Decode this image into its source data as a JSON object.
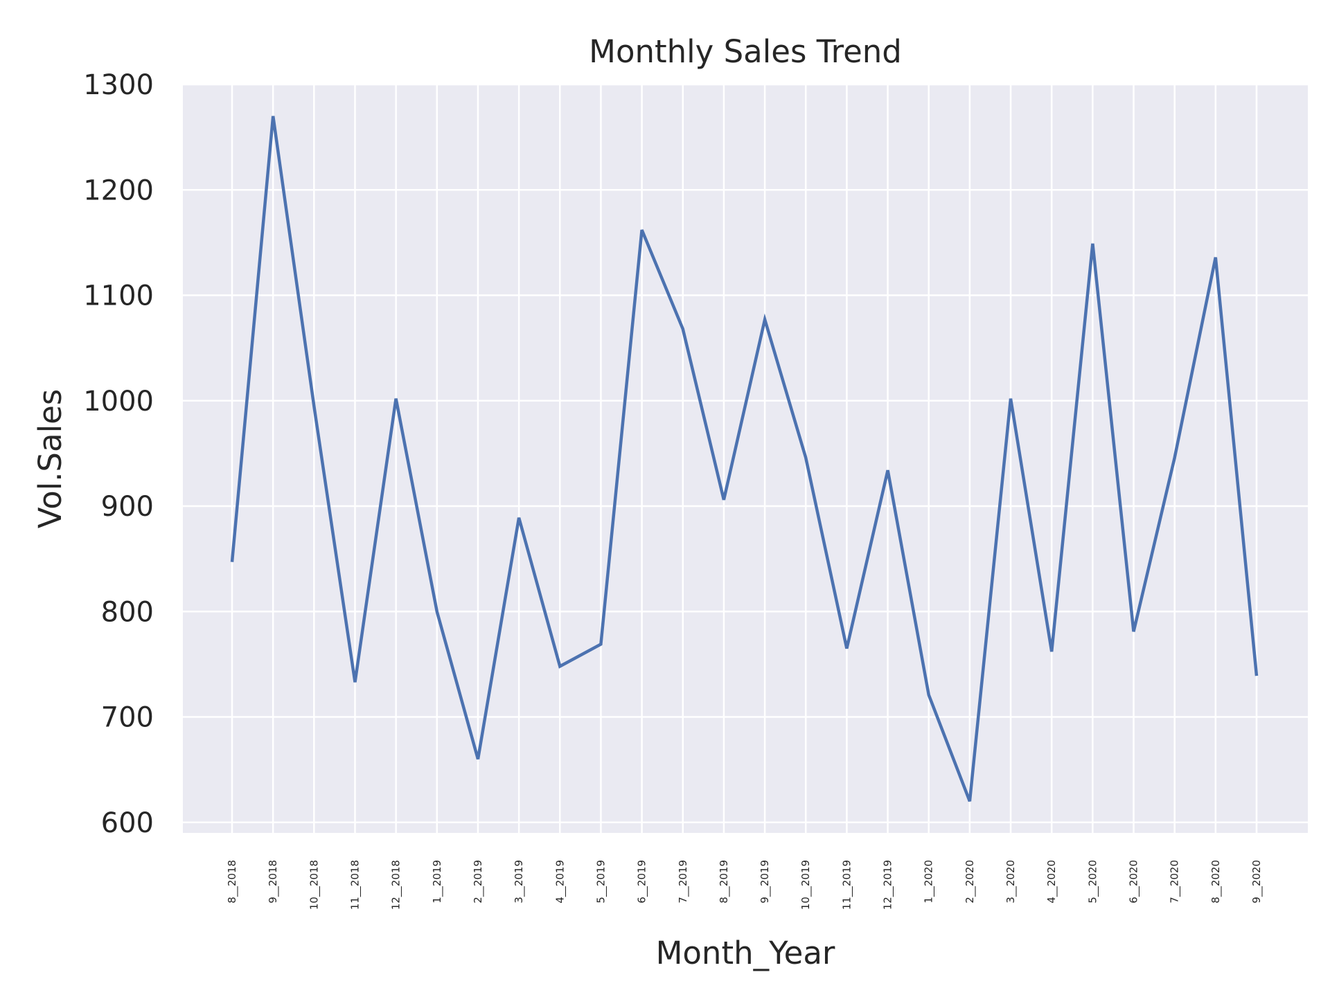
{
  "chart_data": {
    "type": "line",
    "title": "Monthly Sales Trend",
    "xlabel": "Month_Year",
    "ylabel": "Vol.Sales",
    "ylim": [
      590,
      1300
    ],
    "yticks": [
      600,
      700,
      800,
      900,
      1000,
      1100,
      1200,
      1300
    ],
    "grid": true,
    "legend": "none",
    "categories": [
      "8__2018",
      "9__2018",
      "10__2018",
      "11__2018",
      "12__2018",
      "1__2019",
      "2__2019",
      "3__2019",
      "4__2019",
      "5__2019",
      "6__2019",
      "7__2019",
      "8__2019",
      "9__2019",
      "10__2019",
      "11__2019",
      "12__2019",
      "1__2020",
      "2__2020",
      "3__2020",
      "4__2020",
      "5__2020",
      "6__2020",
      "7__2020",
      "8__2020",
      "9__2020"
    ],
    "series": [
      {
        "values": [
          847,
          1270,
          995,
          733,
          1002,
          800,
          660,
          889,
          748,
          769,
          1162,
          1068,
          906,
          1077,
          946,
          765,
          934,
          721,
          620,
          1002,
          762,
          1149,
          781,
          946,
          1136,
          739
        ]
      }
    ],
    "colors": {
      "line": "#4c72b0",
      "plot_background": "#eaeaf2",
      "grid": "#ffffff",
      "text": "#262626"
    }
  }
}
